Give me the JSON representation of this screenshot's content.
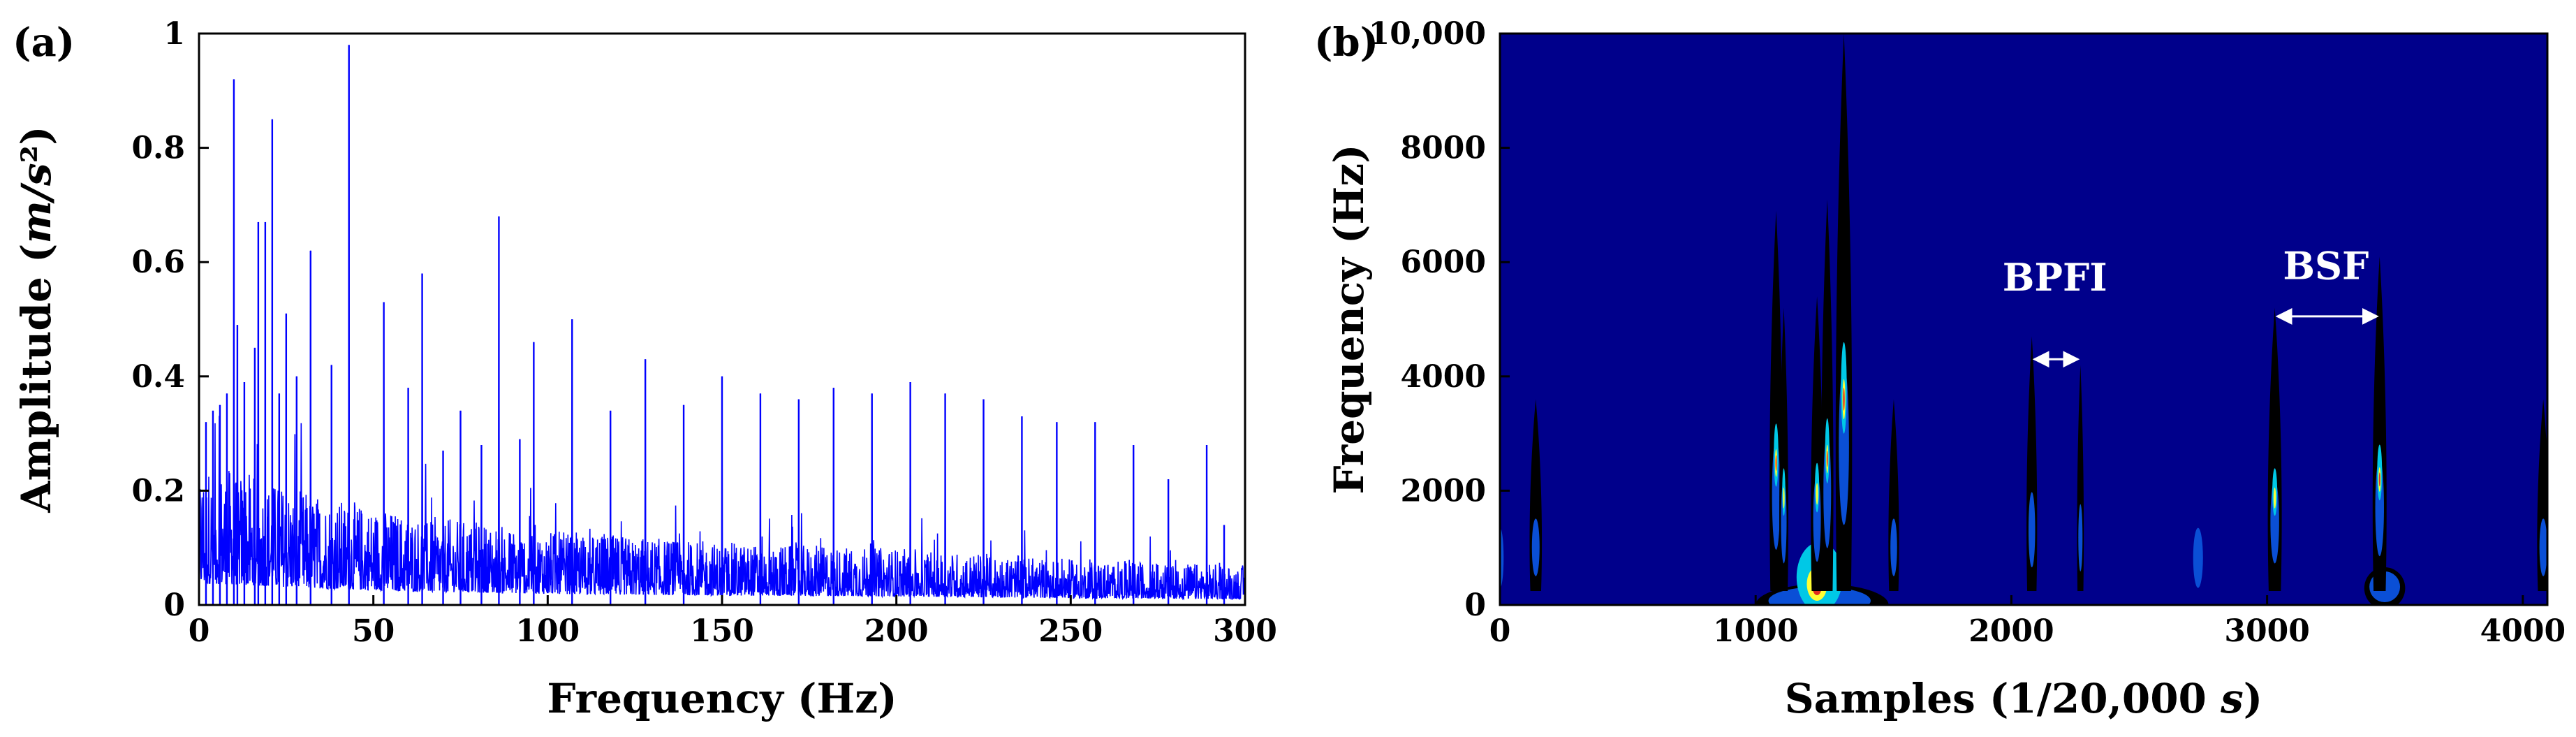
{
  "chart_data": [
    {
      "type": "line",
      "panel_label": "(a)",
      "xlabel": "Frequency (Hz)",
      "ylabel": "Amplitude (m/s²)",
      "ylabel_parts": [
        "Amplitude (",
        "m/s",
        "²",
        ")"
      ],
      "xlim": [
        0,
        300
      ],
      "ylim": [
        0,
        1
      ],
      "xticks": [
        0,
        50,
        100,
        150,
        200,
        250,
        300
      ],
      "xtick_labels": [
        "0",
        "50",
        "100",
        "150",
        "200",
        "250",
        "300"
      ],
      "yticks": [
        0,
        0.2,
        0.4,
        0.6,
        0.8,
        1
      ],
      "ytick_labels": [
        "0",
        "0.2",
        "0.4",
        "0.6",
        "0.8",
        "1"
      ],
      "grid": false,
      "line_color": "#0000ff",
      "series": [
        {
          "peaks": [
            {
              "x": 2,
              "y": 0.32
            },
            {
              "x": 4,
              "y": 0.34
            },
            {
              "x": 6,
              "y": 0.35
            },
            {
              "x": 8,
              "y": 0.37
            },
            {
              "x": 10,
              "y": 0.92
            },
            {
              "x": 11,
              "y": 0.49
            },
            {
              "x": 13,
              "y": 0.39
            },
            {
              "x": 16,
              "y": 0.45
            },
            {
              "x": 17,
              "y": 0.67
            },
            {
              "x": 19,
              "y": 0.67
            },
            {
              "x": 21,
              "y": 0.85
            },
            {
              "x": 23,
              "y": 0.37
            },
            {
              "x": 25,
              "y": 0.51
            },
            {
              "x": 28,
              "y": 0.4
            },
            {
              "x": 32,
              "y": 0.62
            },
            {
              "x": 38,
              "y": 0.42
            },
            {
              "x": 43,
              "y": 0.98
            },
            {
              "x": 53,
              "y": 0.53
            },
            {
              "x": 60,
              "y": 0.38
            },
            {
              "x": 64,
              "y": 0.58
            },
            {
              "x": 70,
              "y": 0.27
            },
            {
              "x": 75,
              "y": 0.34
            },
            {
              "x": 81,
              "y": 0.28
            },
            {
              "x": 86,
              "y": 0.68
            },
            {
              "x": 92,
              "y": 0.29
            },
            {
              "x": 96,
              "y": 0.46
            },
            {
              "x": 107,
              "y": 0.5
            },
            {
              "x": 118,
              "y": 0.34
            },
            {
              "x": 128,
              "y": 0.43
            },
            {
              "x": 139,
              "y": 0.35
            },
            {
              "x": 150,
              "y": 0.4
            },
            {
              "x": 161,
              "y": 0.37
            },
            {
              "x": 172,
              "y": 0.36
            },
            {
              "x": 182,
              "y": 0.38
            },
            {
              "x": 193,
              "y": 0.37
            },
            {
              "x": 204,
              "y": 0.39
            },
            {
              "x": 214,
              "y": 0.37
            },
            {
              "x": 225,
              "y": 0.36
            },
            {
              "x": 236,
              "y": 0.33
            },
            {
              "x": 246,
              "y": 0.32
            },
            {
              "x": 257,
              "y": 0.32
            },
            {
              "x": 268,
              "y": 0.28
            },
            {
              "x": 278,
              "y": 0.22
            },
            {
              "x": 289,
              "y": 0.28
            },
            {
              "x": 294,
              "y": 0.14
            }
          ],
          "noise_floor": [
            {
              "x": 0,
              "y": 0.25
            },
            {
              "x": 10,
              "y": 0.24
            },
            {
              "x": 30,
              "y": 0.2
            },
            {
              "x": 60,
              "y": 0.16
            },
            {
              "x": 100,
              "y": 0.13
            },
            {
              "x": 150,
              "y": 0.11
            },
            {
              "x": 200,
              "y": 0.1
            },
            {
              "x": 250,
              "y": 0.08
            },
            {
              "x": 300,
              "y": 0.07
            }
          ]
        }
      ]
    },
    {
      "type": "heatmap",
      "panel_label": "(b)",
      "xlabel": "Samples (1/20,000 s)",
      "xlabel_parts": [
        "Samples (1/20,000 ",
        "s",
        ")"
      ],
      "ylabel": "Frequency (Hz)",
      "xlim": [
        0,
        4096
      ],
      "ylim": [
        0,
        10000
      ],
      "xticks": [
        0,
        1000,
        2000,
        3000,
        4000
      ],
      "xtick_labels": [
        "0",
        "1000",
        "2000",
        "3000",
        "4000"
      ],
      "yticks": [
        0,
        2000,
        4000,
        6000,
        8000,
        10000
      ],
      "ytick_labels": [
        "0",
        "2000",
        "4000",
        "6000",
        "8000",
        "10,000"
      ],
      "background_color": "#00008b",
      "colors": {
        "low": "#0a4fd6",
        "mid": "#00c8e6",
        "high": "#ffff33",
        "peak": "#e0301e",
        "edge": "#000000"
      },
      "annotations": [
        {
          "text": "BPFI",
          "x": 2170,
          "y": 5500,
          "arrow_from": 2080,
          "arrow_to": 2270,
          "arrow_y": 4300
        },
        {
          "text": "BSF",
          "x": 3230,
          "y": 5700,
          "arrow_from": 3030,
          "arrow_to": 3440,
          "arrow_y": 5050
        }
      ],
      "features": [
        {
          "x": 0,
          "w": 18,
          "top": 1500,
          "kind": "blob"
        },
        {
          "x": 140,
          "w": 30,
          "top": 3600,
          "kind": "streak"
        },
        {
          "x": 1080,
          "w": 32,
          "top": 6900,
          "kind": "streak"
        },
        {
          "x": 1110,
          "w": 22,
          "top": 5200,
          "kind": "streak"
        },
        {
          "x": 1240,
          "w": 30,
          "top": 5400,
          "kind": "streak"
        },
        {
          "x": 1280,
          "w": 30,
          "top": 7100,
          "kind": "streak"
        },
        {
          "x": 1345,
          "w": 40,
          "top": 10000,
          "kind": "streak"
        },
        {
          "x": 1540,
          "w": 26,
          "top": 3600,
          "kind": "streak"
        },
        {
          "x": 2080,
          "w": 26,
          "top": 4700,
          "kind": "streak"
        },
        {
          "x": 2270,
          "w": 14,
          "top": 4200,
          "kind": "streak"
        },
        {
          "x": 2730,
          "w": 24,
          "top": 1500,
          "kind": "blob"
        },
        {
          "x": 3030,
          "w": 34,
          "top": 5200,
          "kind": "streak"
        },
        {
          "x": 3440,
          "w": 34,
          "top": 6100,
          "kind": "streak"
        },
        {
          "x": 4080,
          "w": 30,
          "top": 3600,
          "kind": "streak"
        }
      ]
    }
  ]
}
